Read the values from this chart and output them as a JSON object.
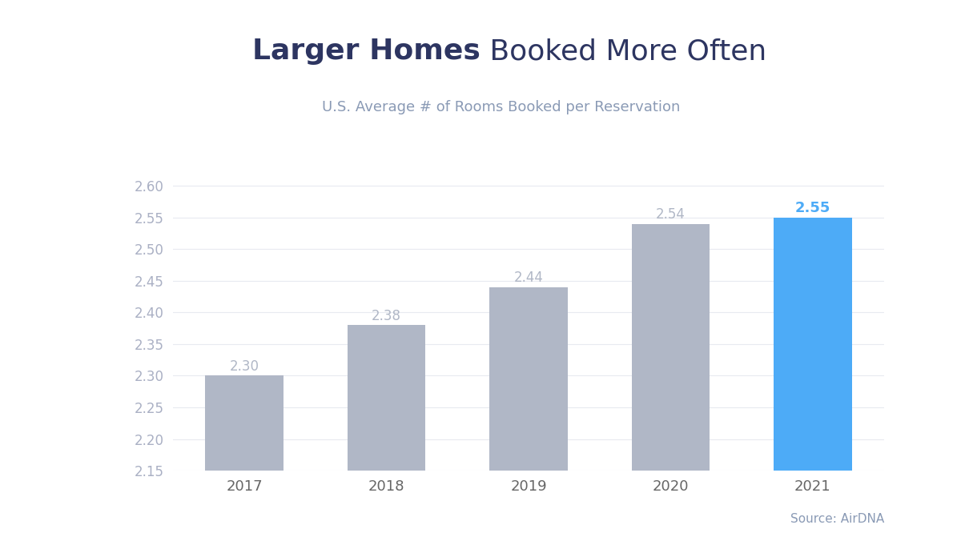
{
  "categories": [
    "2017",
    "2018",
    "2019",
    "2020",
    "2021"
  ],
  "values": [
    2.3,
    2.38,
    2.44,
    2.54,
    2.55
  ],
  "bar_colors": [
    "#b0b7c6",
    "#b0b7c6",
    "#b0b7c6",
    "#b0b7c6",
    "#4dabf7"
  ],
  "label_colors": [
    "#b0b7c6",
    "#b0b7c6",
    "#b0b7c6",
    "#b0b7c6",
    "#4dabf7"
  ],
  "title_bold_part": "Larger Homes",
  "title_normal_part": " Booked More Often",
  "subtitle": "U.S. Average # of Rooms Booked per Reservation",
  "title_color": "#2d3561",
  "subtitle_color": "#8a9ab5",
  "source_text": "Source: AirDNA",
  "source_color": "#8a9ab5",
  "ylim": [
    2.15,
    2.62
  ],
  "yticks": [
    2.15,
    2.2,
    2.25,
    2.3,
    2.35,
    2.4,
    2.45,
    2.5,
    2.55,
    2.6
  ],
  "background_color": "#ffffff",
  "bar_width": 0.55,
  "title_fontsize": 26,
  "subtitle_fontsize": 13,
  "label_fontsize": 12,
  "tick_fontsize": 12,
  "source_fontsize": 11
}
